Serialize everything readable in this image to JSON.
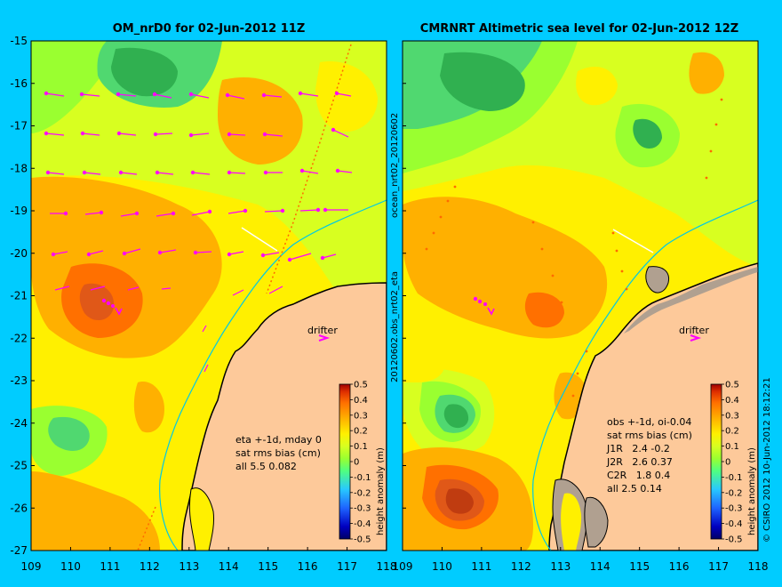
{
  "left_panel": {
    "title": "OM_nrD0 for 02-Jun-2012 11Z",
    "stats_lines": [
      "eta +-1d, mday 0",
      "sat rms bias (cm)",
      "all 5.5 0.082"
    ]
  },
  "right_panel": {
    "title": "CMRNRT Altimetric sea level  for 02-Jun-2012 12Z",
    "stats_lines": [
      "obs +-1d, oi-0.04",
      "sat rms bias (cm)",
      "J1R   2.4 -0.2",
      "J2R   2.6 0.37",
      "C2R   1.8 0.4",
      "all 2.5 0.14"
    ]
  },
  "axes": {
    "y_ticks": [
      "-15",
      "-16",
      "-17",
      "-18",
      "-19",
      "-20",
      "-21",
      "-22",
      "-23",
      "-24",
      "-25",
      "-26",
      "-27"
    ],
    "x_ticks": [
      "109",
      "110",
      "111",
      "112",
      "113",
      "114",
      "115",
      "116",
      "117",
      "118"
    ],
    "lon_range": [
      109,
      118
    ],
    "lat_range": [
      -27,
      -15
    ]
  },
  "colorbar": {
    "label": "height anomaly (m)",
    "ticks": [
      "0.5",
      "0.4",
      "0.3",
      "0.2",
      "0.1",
      "0",
      "-0.1",
      "-0.2",
      "-0.3",
      "-0.4",
      "-0.5"
    ],
    "colors": [
      "#000066",
      "#0000c0",
      "#1e64ff",
      "#28c8ff",
      "#50ff80",
      "#9aff30",
      "#d8ff20",
      "#fff000",
      "#ffb000",
      "#ff7000",
      "#e03000",
      "#a00000"
    ]
  },
  "side_labels": {
    "mid_vertical": "20120602.obs_nrt02_eta",
    "mid_vertical_top": "ocean_nrt02_20120602",
    "right_vertical": "© CSIRO 2012   10-Jun-2012 18:12:21"
  },
  "markers": {
    "drifter_label": "drifter"
  },
  "colors": {
    "background": "#00ccff",
    "land": "#fdc99a",
    "vector": "#ff00ff",
    "coast": "#000000",
    "isobath": "#00c8e6"
  }
}
